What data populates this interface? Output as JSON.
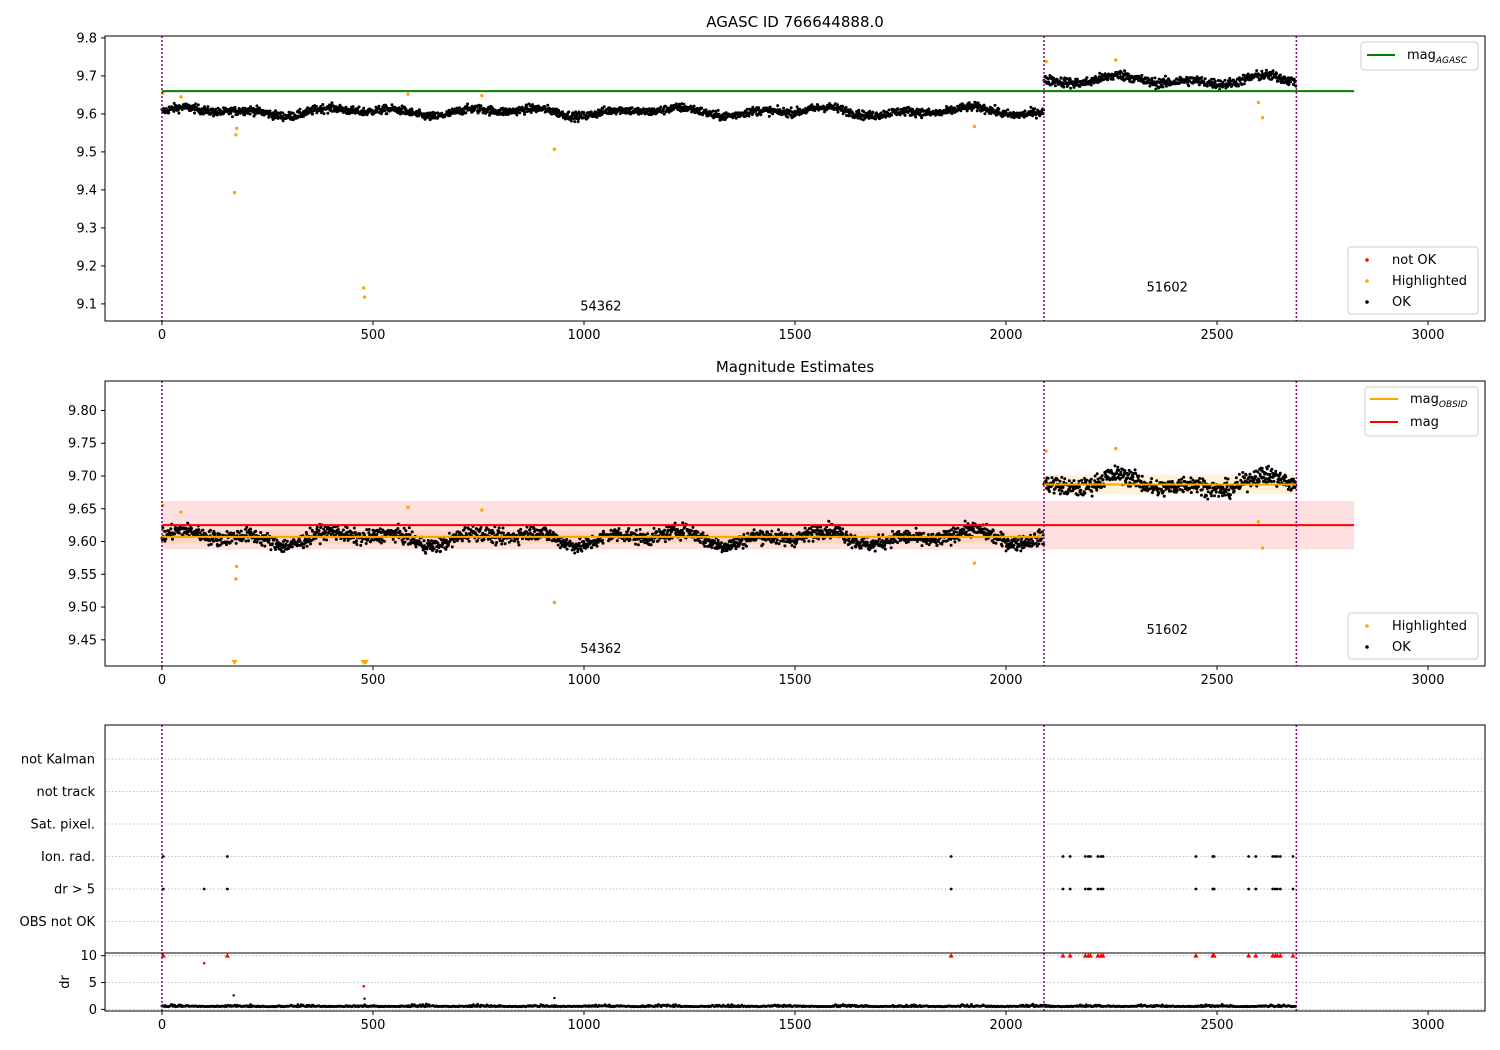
{
  "chart_data": [
    {
      "type": "scatter",
      "title": "AGASC ID 766644888.0",
      "xlim": [
        -135,
        3135
      ],
      "ylim": [
        9.055,
        9.805
      ],
      "xticks": [
        0,
        500,
        1000,
        1500,
        2000,
        2500,
        3000
      ],
      "xtick_labels": [
        "0",
        "500",
        "1000",
        "1500",
        "2000",
        "2500",
        "3000"
      ],
      "yticks": [
        9.1,
        9.2,
        9.3,
        9.4,
        9.5,
        9.6,
        9.7,
        9.8
      ],
      "ytick_labels": [
        "9.1",
        "9.2",
        "9.3",
        "9.4",
        "9.5",
        "9.6",
        "9.7",
        "9.8"
      ],
      "obsid_boundaries": [
        0,
        2090,
        2688
      ],
      "obsid_labels": [
        {
          "text": "54362",
          "x": 1040,
          "y": 9.082
        },
        {
          "text": "51602",
          "x": 2382,
          "y": 9.133
        }
      ],
      "lines": [
        {
          "name": "mag_AGASC",
          "y": 9.66,
          "x": [
            0,
            2825
          ],
          "color": "#008000"
        }
      ],
      "legend_top": {
        "position": "top-right",
        "entries": [
          {
            "label": "mag",
            "sub": "AGASC",
            "color": "#008000"
          }
        ]
      },
      "legend_bottom": {
        "position": "bottom-right",
        "entries": [
          {
            "label": "not OK",
            "color": "#ff0000"
          },
          {
            "label": "Highlighted",
            "color": "#ffa500"
          },
          {
            "label": "OK",
            "color": "#000000"
          }
        ]
      },
      "ok_segments": [
        {
          "x0": 0,
          "x1": 2090,
          "mean": 9.606,
          "wiggle": 0.013,
          "noise": 0.011
        },
        {
          "x0": 2090,
          "x1": 2688,
          "mean": 9.688,
          "wiggle": 0.014,
          "noise": 0.013
        }
      ],
      "highlighted": [
        {
          "x": 2,
          "y": 9.655
        },
        {
          "x": 45,
          "y": 9.645
        },
        {
          "x": 172,
          "y": 9.393
        },
        {
          "x": 175,
          "y": 9.545
        },
        {
          "x": 177,
          "y": 9.562
        },
        {
          "x": 478,
          "y": 9.142
        },
        {
          "x": 480,
          "y": 9.118
        },
        {
          "x": 583,
          "y": 9.652
        },
        {
          "x": 758,
          "y": 9.648
        },
        {
          "x": 930,
          "y": 9.507
        },
        {
          "x": 1925,
          "y": 9.567
        },
        {
          "x": 2095,
          "y": 9.738
        },
        {
          "x": 2260,
          "y": 9.742
        },
        {
          "x": 2598,
          "y": 9.63
        },
        {
          "x": 2608,
          "y": 9.59
        }
      ],
      "not_ok": []
    },
    {
      "type": "scatter",
      "title": "Magnitude Estimates",
      "xlim": [
        -135,
        3135
      ],
      "ylim": [
        9.41,
        9.845
      ],
      "xticks": [
        0,
        500,
        1000,
        1500,
        2000,
        2500,
        3000
      ],
      "xtick_labels": [
        "0",
        "500",
        "1000",
        "1500",
        "2000",
        "2500",
        "3000"
      ],
      "yticks": [
        9.45,
        9.5,
        9.55,
        9.6,
        9.65,
        9.7,
        9.75,
        9.8
      ],
      "ytick_labels": [
        "9.45",
        "9.50",
        "9.55",
        "9.60",
        "9.65",
        "9.70",
        "9.75",
        "9.80"
      ],
      "obsid_boundaries": [
        0,
        2090,
        2688
      ],
      "obsid_labels": [
        {
          "text": "54362",
          "x": 1040,
          "y": 9.43
        },
        {
          "text": "51602",
          "x": 2382,
          "y": 9.459
        }
      ],
      "mag_band": {
        "x": [
          0,
          2825
        ],
        "y": 9.625,
        "low": 9.588,
        "high": 9.662,
        "color": "#ff0000"
      },
      "obsid_mags": [
        {
          "x0": 0,
          "x1": 2090,
          "y": 9.607,
          "low": 9.597,
          "high": 9.617
        },
        {
          "x0": 2090,
          "x1": 2688,
          "y": 9.687,
          "low": 9.672,
          "high": 9.702
        }
      ],
      "legend_top": {
        "position": "top-right",
        "entries": [
          {
            "label": "mag",
            "sub": "OBSID",
            "color": "#ffa500"
          },
          {
            "label": "mag",
            "sub": "",
            "color": "#ff0000"
          }
        ]
      },
      "legend_bottom": {
        "position": "bottom-right",
        "entries": [
          {
            "label": "Highlighted",
            "color": "#ffa500"
          },
          {
            "label": "OK",
            "color": "#000000"
          }
        ]
      },
      "ok_segments": [
        {
          "x0": 0,
          "x1": 2090,
          "mean": 9.606,
          "wiggle": 0.013,
          "noise": 0.011
        },
        {
          "x0": 2090,
          "x1": 2688,
          "mean": 9.688,
          "wiggle": 0.014,
          "noise": 0.013
        }
      ],
      "highlighted": [
        {
          "x": 2,
          "y": 9.655
        },
        {
          "x": 45,
          "y": 9.645
        },
        {
          "x": 175,
          "y": 9.543
        },
        {
          "x": 177,
          "y": 9.562
        },
        {
          "x": 583,
          "y": 9.652
        },
        {
          "x": 758,
          "y": 9.648
        },
        {
          "x": 930,
          "y": 9.507
        },
        {
          "x": 1925,
          "y": 9.567
        },
        {
          "x": 2095,
          "y": 9.738
        },
        {
          "x": 2260,
          "y": 9.742
        },
        {
          "x": 2598,
          "y": 9.63
        },
        {
          "x": 2608,
          "y": 9.59
        }
      ],
      "offscale_markers": [
        {
          "x": 172
        },
        {
          "x": 478
        },
        {
          "x": 483
        }
      ]
    },
    {
      "type": "scatter",
      "xlim": [
        -135,
        3135
      ],
      "flag_rows": [
        "not Kalman",
        "not track",
        "Sat. pixel.",
        "Ion. rad.",
        "dr > 5",
        "OBS not OK"
      ],
      "flags": {
        "Ion. rad.": [
          3,
          155,
          1870,
          2135,
          2152,
          2188,
          2195,
          2200,
          2218,
          2225,
          2230,
          2450,
          2490,
          2493,
          2575,
          2592,
          2632,
          2638,
          2643,
          2650,
          2680
        ],
        "dr > 5": [
          3,
          100,
          155,
          1870,
          2135,
          2152,
          2188,
          2195,
          2200,
          2218,
          2225,
          2230,
          2450,
          2490,
          2493,
          2575,
          2592,
          2632,
          2638,
          2643,
          2650,
          2680
        ]
      },
      "dr": {
        "ylabel": "dr",
        "ylim": [
          -0.3,
          10.5
        ],
        "yticks": [
          0,
          5,
          10
        ],
        "ytick_labels": [
          "0",
          "5",
          "10"
        ],
        "baseline": 0.5,
        "clipped_x": [
          3,
          155,
          1870,
          2135,
          2152,
          2188,
          2195,
          2200,
          2218,
          2225,
          2230,
          2450,
          2490,
          2493,
          2575,
          2592,
          2632,
          2638,
          2643,
          2650,
          2680
        ],
        "red_points": [
          {
            "x": 100,
            "y": 8.6
          },
          {
            "x": 478,
            "y": 4.3
          }
        ],
        "black_outliers": [
          {
            "x": 170,
            "y": 2.6
          },
          {
            "x": 480,
            "y": 2.0
          },
          {
            "x": 930,
            "y": 2.1
          }
        ]
      },
      "obsid_boundaries": [
        0,
        2090,
        2688
      ],
      "xticks": [
        0,
        500,
        1000,
        1500,
        2000,
        2500,
        3000
      ],
      "xtick_labels": [
        "0",
        "500",
        "1000",
        "1500",
        "2000",
        "2500",
        "3000"
      ]
    }
  ]
}
